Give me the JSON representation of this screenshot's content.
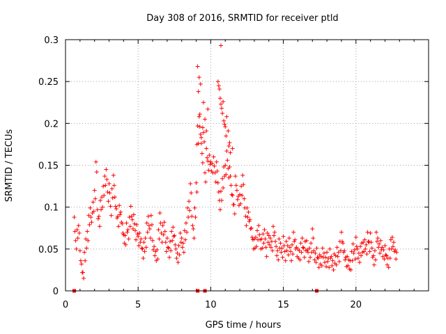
{
  "chart_data": {
    "type": "scatter",
    "title": "Day 308 of 2016, SRMTID for receiver ptld",
    "xlabel": "GPS time / hours",
    "ylabel": "SRMTID / TECUs",
    "xlim": [
      0,
      25
    ],
    "ylim": [
      0,
      0.3
    ],
    "x_ticks": [
      0,
      5,
      10,
      15,
      20
    ],
    "x_tick_labels": [
      "0",
      "5",
      "10",
      "15",
      "20"
    ],
    "y_ticks": [
      0,
      0.05,
      0.1,
      0.15,
      0.2,
      0.25,
      0.3
    ],
    "y_tick_labels": [
      "0",
      "0.05",
      "0.1",
      "0.15",
      "0.2",
      "0.25",
      "0.3"
    ],
    "grid": true,
    "marker": "+",
    "series": [
      {
        "name": "SRMTID",
        "color": "#ff0000",
        "x": [
          0.6,
          0.7,
          0.8,
          0.9,
          1.0,
          1.1,
          1.2,
          1.3,
          1.4,
          1.5,
          1.6,
          1.7,
          1.8,
          1.9,
          2.0,
          2.1,
          2.2,
          2.3,
          2.4,
          2.5,
          2.6,
          2.7,
          2.8,
          2.9,
          3.0,
          3.1,
          3.2,
          3.3,
          3.4,
          3.5,
          3.6,
          3.7,
          3.8,
          3.9,
          4.0,
          4.1,
          4.2,
          4.3,
          4.4,
          4.5,
          4.6,
          4.7,
          4.8,
          4.9,
          5.0,
          5.1,
          5.2,
          5.3,
          5.4,
          5.5,
          5.6,
          5.7,
          5.8,
          5.9,
          6.0,
          6.1,
          6.2,
          6.3,
          6.4,
          6.5,
          6.6,
          6.7,
          6.8,
          6.9,
          7.0,
          7.1,
          7.2,
          7.3,
          7.4,
          7.5,
          7.6,
          7.7,
          7.8,
          7.9,
          8.0,
          8.1,
          8.2,
          8.3,
          8.4,
          8.5,
          8.6,
          8.7,
          8.8,
          8.9,
          9.0,
          9.1,
          9.2,
          9.3,
          9.4,
          9.5,
          9.6,
          9.7,
          9.8,
          9.9,
          10.0,
          10.1,
          10.2,
          10.3,
          10.4,
          10.5,
          10.6,
          10.7,
          10.8,
          10.9,
          11.0,
          11.1,
          11.2,
          11.3,
          11.4,
          11.5,
          11.6,
          11.7,
          11.8,
          11.9,
          12.0,
          12.1,
          12.2,
          12.3,
          12.4,
          12.5,
          12.6,
          12.7,
          12.8,
          12.9,
          13.0,
          13.1,
          13.2,
          13.3,
          13.4,
          13.5,
          13.6,
          13.7,
          13.8,
          13.9,
          14.0,
          14.1,
          14.2,
          14.3,
          14.4,
          14.5,
          14.6,
          14.7,
          14.8,
          14.9,
          15.0,
          15.1,
          15.2,
          15.3,
          15.4,
          15.5,
          15.6,
          15.7,
          15.8,
          15.9,
          16.0,
          16.1,
          16.2,
          16.3,
          16.4,
          16.5,
          16.6,
          16.7,
          16.8,
          16.9,
          17.0,
          17.1,
          17.2,
          17.3,
          17.4,
          17.5,
          17.6,
          17.7,
          17.8,
          17.9,
          18.0,
          18.1,
          18.2,
          18.3,
          18.4,
          18.5,
          18.6,
          18.7,
          18.8,
          18.9,
          19.0,
          19.1,
          19.2,
          19.3,
          19.4,
          19.5,
          19.6,
          19.7,
          19.8,
          19.9,
          20.0,
          20.1,
          20.2,
          20.3,
          20.4,
          20.5,
          20.6,
          20.7,
          20.8,
          20.9,
          21.0,
          21.1,
          21.2,
          21.3,
          21.4,
          21.5,
          21.6,
          21.7,
          21.8,
          21.9,
          22.0,
          22.1,
          22.2,
          22.3,
          22.4,
          22.5,
          22.6,
          22.7,
          22.8,
          0.65,
          0.75,
          0.85,
          0.95,
          1.05,
          1.15,
          1.25,
          1.35,
          1.45,
          1.55,
          1.65,
          1.75,
          1.85,
          1.95,
          2.05,
          2.15,
          2.25,
          2.35,
          2.45,
          2.55,
          2.65,
          2.75,
          2.85,
          2.95,
          3.05,
          3.15,
          3.25,
          3.35,
          3.45,
          3.55,
          3.65,
          3.75,
          3.85,
          3.95,
          4.05,
          4.15,
          4.25,
          4.35,
          4.45,
          4.55,
          4.65,
          4.75,
          4.85,
          4.95,
          5.05,
          5.15,
          5.25,
          5.35,
          5.45,
          5.55,
          5.65,
          5.75,
          5.85,
          5.95,
          6.05,
          6.15,
          6.25,
          6.35,
          6.45,
          6.55,
          6.65,
          6.75,
          6.85,
          6.95,
          7.05,
          7.15,
          7.25,
          7.35,
          7.45,
          7.55,
          7.65,
          7.75,
          7.85,
          7.95,
          8.05,
          8.15,
          8.25,
          8.35,
          8.45,
          8.55,
          8.65,
          8.75,
          8.85,
          8.95,
          9.05,
          9.15,
          9.25,
          9.35,
          9.45,
          9.55,
          9.65,
          9.75,
          9.85,
          9.95,
          10.05,
          10.15,
          10.25,
          10.35,
          10.45,
          10.55,
          10.65,
          10.75,
          10.85,
          10.95,
          11.05,
          11.15,
          11.25,
          11.35,
          11.45,
          11.55,
          11.65,
          11.75,
          11.85,
          11.95,
          12.05,
          12.15,
          12.25,
          12.35,
          12.45,
          12.55,
          12.65,
          12.75,
          12.85,
          12.95,
          13.05,
          13.15,
          13.25,
          13.35,
          13.45,
          13.55,
          13.65,
          13.75,
          13.85,
          13.95,
          14.05,
          14.15,
          14.25,
          14.35,
          14.45,
          14.55,
          14.65,
          14.75,
          14.85,
          14.95,
          15.05,
          15.15,
          15.25,
          15.35,
          15.45,
          15.55,
          15.65,
          15.75,
          15.85,
          15.95,
          16.05,
          16.15,
          16.25,
          16.35,
          16.45,
          16.55,
          16.65,
          16.75,
          16.85,
          16.95,
          17.05,
          17.15,
          17.25,
          17.35,
          17.45,
          17.55,
          17.65,
          17.75,
          17.85,
          17.95,
          18.05,
          18.15,
          18.25,
          18.35,
          18.45,
          18.55,
          18.65,
          18.75,
          18.85,
          18.95,
          19.05,
          19.15,
          19.25,
          19.35,
          19.45,
          19.55,
          19.65,
          19.75,
          19.85,
          19.95,
          20.05,
          20.15,
          20.25,
          20.35,
          20.45,
          20.55,
          20.65,
          20.75,
          20.85,
          20.95,
          21.05,
          21.15,
          21.25,
          21.35,
          21.45,
          21.55,
          21.65,
          21.75,
          21.85,
          21.95,
          22.05,
          22.15,
          22.25,
          22.35,
          22.45,
          22.55,
          22.65,
          22.75,
          9.1,
          9.2,
          9.3,
          9.5,
          9.6,
          9.7,
          9.8,
          10.5,
          10.6,
          10.7,
          10.8,
          10.9,
          11.0,
          11.1,
          11.2,
          11.3,
          9.15,
          9.25,
          9.35,
          10.55,
          10.65,
          10.75,
          10.95,
          11.05,
          11.25,
          9.05,
          9.45,
          10.85,
          11.35,
          11.5
        ],
        "y": [
          0.088,
          0.06,
          0.073,
          0.078,
          0.048,
          0.032,
          0.022,
          0.046,
          0.062,
          0.071,
          0.09,
          0.099,
          0.082,
          0.106,
          0.12,
          0.154,
          0.097,
          0.089,
          0.108,
          0.112,
          0.125,
          0.137,
          0.145,
          0.118,
          0.128,
          0.101,
          0.122,
          0.138,
          0.112,
          0.098,
          0.089,
          0.102,
          0.094,
          0.08,
          0.067,
          0.066,
          0.081,
          0.073,
          0.088,
          0.101,
          0.085,
          0.091,
          0.072,
          0.079,
          0.065,
          0.069,
          0.062,
          0.05,
          0.058,
          0.063,
          0.081,
          0.089,
          0.074,
          0.09,
          0.06,
          0.053,
          0.047,
          0.049,
          0.073,
          0.093,
          0.069,
          0.078,
          0.082,
          0.058,
          0.063,
          0.051,
          0.059,
          0.071,
          0.076,
          0.066,
          0.05,
          0.045,
          0.054,
          0.069,
          0.063,
          0.057,
          0.072,
          0.081,
          0.099,
          0.107,
          0.128,
          0.089,
          0.074,
          0.099,
          0.129,
          0.197,
          0.208,
          0.187,
          0.164,
          0.189,
          0.141,
          0.17,
          0.155,
          0.162,
          0.154,
          0.152,
          0.16,
          0.141,
          0.154,
          0.129,
          0.108,
          0.119,
          0.134,
          0.148,
          0.15,
          0.167,
          0.146,
          0.148,
          0.126,
          0.114,
          0.103,
          0.137,
          0.12,
          0.113,
          0.115,
          0.125,
          0.138,
          0.11,
          0.089,
          0.099,
          0.094,
          0.085,
          0.075,
          0.061,
          0.062,
          0.064,
          0.072,
          0.078,
          0.061,
          0.062,
          0.068,
          0.073,
          0.052,
          0.069,
          0.066,
          0.063,
          0.059,
          0.077,
          0.07,
          0.053,
          0.048,
          0.062,
          0.057,
          0.051,
          0.065,
          0.047,
          0.059,
          0.054,
          0.063,
          0.047,
          0.055,
          0.07,
          0.061,
          0.052,
          0.05,
          0.048,
          0.057,
          0.063,
          0.051,
          0.059,
          0.06,
          0.046,
          0.051,
          0.057,
          0.074,
          0.048,
          0.045,
          0.051,
          0.039,
          0.043,
          0.041,
          0.051,
          0.045,
          0.04,
          0.046,
          0.039,
          0.05,
          0.041,
          0.036,
          0.044,
          0.042,
          0.052,
          0.046,
          0.059,
          0.07,
          0.057,
          0.048,
          0.04,
          0.041,
          0.037,
          0.036,
          0.047,
          0.056,
          0.049,
          0.064,
          0.05,
          0.045,
          0.053,
          0.057,
          0.058,
          0.061,
          0.055,
          0.07,
          0.058,
          0.069,
          0.051,
          0.042,
          0.048,
          0.07,
          0.063,
          0.056,
          0.06,
          0.052,
          0.049,
          0.054,
          0.042,
          0.039,
          0.05,
          0.061,
          0.064,
          0.058,
          0.049,
          0.046,
          0.071,
          0.05,
          0.063,
          0.069,
          0.036,
          0.022,
          0.015,
          0.036,
          0.051,
          0.06,
          0.079,
          0.088,
          0.093,
          0.095,
          0.11,
          0.142,
          0.086,
          0.077,
          0.097,
          0.1,
          0.114,
          0.126,
          0.133,
          0.107,
          0.117,
          0.09,
          0.111,
          0.126,
          0.101,
          0.087,
          0.077,
          0.091,
          0.082,
          0.069,
          0.057,
          0.055,
          0.07,
          0.062,
          0.077,
          0.089,
          0.074,
          0.08,
          0.061,
          0.068,
          0.054,
          0.058,
          0.051,
          0.039,
          0.047,
          0.052,
          0.07,
          0.078,
          0.063,
          0.079,
          0.049,
          0.042,
          0.036,
          0.038,
          0.062,
          0.081,
          0.058,
          0.067,
          0.071,
          0.047,
          0.052,
          0.04,
          0.048,
          0.06,
          0.065,
          0.055,
          0.039,
          0.034,
          0.043,
          0.058,
          0.052,
          0.046,
          0.061,
          0.07,
          0.088,
          0.096,
          0.117,
          0.078,
          0.063,
          0.088,
          0.118,
          0.176,
          0.196,
          0.176,
          0.153,
          0.178,
          0.13,
          0.159,
          0.144,
          0.151,
          0.143,
          0.141,
          0.149,
          0.13,
          0.143,
          0.118,
          0.097,
          0.108,
          0.123,
          0.137,
          0.139,
          0.156,
          0.135,
          0.137,
          0.115,
          0.103,
          0.092,
          0.126,
          0.109,
          0.102,
          0.104,
          0.114,
          0.127,
          0.099,
          0.078,
          0.088,
          0.083,
          0.074,
          0.064,
          0.05,
          0.051,
          0.053,
          0.061,
          0.067,
          0.05,
          0.051,
          0.057,
          0.062,
          0.041,
          0.058,
          0.055,
          0.052,
          0.048,
          0.066,
          0.059,
          0.042,
          0.037,
          0.051,
          0.046,
          0.04,
          0.054,
          0.036,
          0.048,
          0.043,
          0.052,
          0.036,
          0.044,
          0.059,
          0.05,
          0.041,
          0.039,
          0.037,
          0.046,
          0.052,
          0.04,
          0.048,
          0.049,
          0.035,
          0.04,
          0.046,
          0.063,
          0.037,
          0.034,
          0.04,
          0.028,
          0.032,
          0.03,
          0.04,
          0.034,
          0.029,
          0.035,
          0.028,
          0.039,
          0.03,
          0.025,
          0.033,
          0.031,
          0.041,
          0.035,
          0.048,
          0.059,
          0.046,
          0.037,
          0.029,
          0.03,
          0.026,
          0.025,
          0.036,
          0.045,
          0.038,
          0.053,
          0.039,
          0.034,
          0.042,
          0.046,
          0.047,
          0.05,
          0.044,
          0.059,
          0.047,
          0.058,
          0.04,
          0.031,
          0.037,
          0.059,
          0.052,
          0.045,
          0.049,
          0.041,
          0.038,
          0.043,
          0.031,
          0.028,
          0.039,
          0.05,
          0.053,
          0.047,
          0.038,
          0.268,
          0.255,
          0.247,
          0.225,
          0.205,
          0.191,
          0.217,
          0.25,
          0.241,
          0.223,
          0.212,
          0.203,
          0.196,
          0.208,
          0.191,
          0.177,
          0.238,
          0.211,
          0.183,
          0.245,
          0.23,
          0.218,
          0.199,
          0.185,
          0.173,
          0.175,
          0.195,
          0.226,
          0.165,
          0.17
        ],
        "zero_points_x": [
          0.6,
          9.1,
          9.6,
          17.3
        ]
      }
    ],
    "annotations": [
      {
        "x": 10.7,
        "y": 0.293
      }
    ]
  }
}
